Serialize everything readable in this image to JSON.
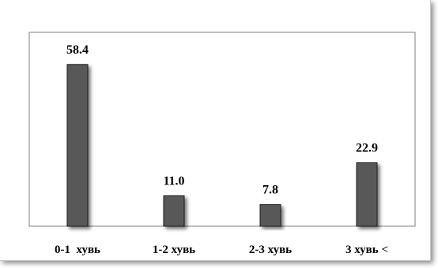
{
  "chart_data": {
    "type": "bar",
    "categories": [
      "0-1  хувь",
      "1-2 хувь",
      "2-3 хувь",
      "3 хувь <"
    ],
    "values": [
      58.4,
      11.0,
      7.8,
      22.9
    ],
    "value_labels": [
      "58.4",
      "11.0",
      "7.8",
      "22.9"
    ],
    "title": "",
    "xlabel": "",
    "ylabel": "",
    "ylim": [
      0,
      70
    ],
    "grid": false,
    "legend": "none",
    "colors": {
      "bar": "#595959",
      "bar_border": "#1a1a1a",
      "plot_border": "#7f7f7f",
      "plot_bg": "#ffffff"
    }
  }
}
